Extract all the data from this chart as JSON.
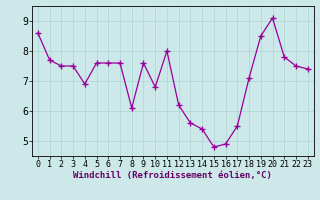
{
  "x": [
    0,
    1,
    2,
    3,
    4,
    5,
    6,
    7,
    8,
    9,
    10,
    11,
    12,
    13,
    14,
    15,
    16,
    17,
    18,
    19,
    20,
    21,
    22,
    23
  ],
  "y": [
    8.6,
    7.7,
    7.5,
    7.5,
    6.9,
    7.6,
    7.6,
    7.6,
    6.1,
    7.6,
    6.8,
    8.0,
    6.2,
    5.6,
    5.4,
    4.8,
    4.9,
    5.5,
    7.1,
    8.5,
    9.1,
    7.8,
    7.5,
    7.4
  ],
  "line_color": "#990099",
  "marker": "+",
  "bg_color": "#cce8e8",
  "grid_color": "#aad4d4",
  "xlabel": "Windchill (Refroidissement éolien,°C)",
  "xlabel_color": "#660066",
  "tick_color": "#000000",
  "ylim": [
    4.5,
    9.5
  ],
  "xlim": [
    -0.5,
    23.5
  ],
  "yticks": [
    5,
    6,
    7,
    8,
    9
  ],
  "xticks": [
    0,
    1,
    2,
    3,
    4,
    5,
    6,
    7,
    8,
    9,
    10,
    11,
    12,
    13,
    14,
    15,
    16,
    17,
    18,
    19,
    20,
    21,
    22,
    23
  ],
  "spine_color": "#000000",
  "figsize": [
    3.2,
    2.0
  ],
  "dpi": 100,
  "tick_fontsize": 6,
  "xlabel_fontsize": 6.5
}
